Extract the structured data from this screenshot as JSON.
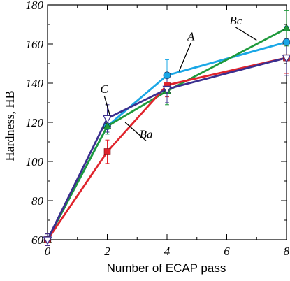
{
  "chart_data": {
    "type": "line",
    "xlabel": "Number of ECAP pass",
    "ylabel": "Hardness, HB",
    "xlim": [
      0,
      8
    ],
    "ylim": [
      60,
      180
    ],
    "x_ticks": [
      "0",
      "2",
      "4",
      "6",
      "8"
    ],
    "x_tick_values": [
      0,
      2,
      4,
      6,
      8
    ],
    "y_ticks": [
      "60",
      "80",
      "100",
      "120",
      "140",
      "160",
      "180"
    ],
    "y_tick_values": [
      60,
      80,
      100,
      120,
      140,
      160,
      180
    ],
    "grid": false,
    "legend": "none",
    "series": [
      {
        "name": "A",
        "color": "#1aa7e6",
        "marker": "circle",
        "x": [
          0,
          2,
          4,
          8
        ],
        "y": [
          60,
          118,
          144,
          161
        ],
        "err": [
          3,
          4,
          8,
          8
        ]
      },
      {
        "name": "Bc",
        "color": "#1f9a3c",
        "marker": "triangle-up",
        "x": [
          0,
          2,
          4,
          8
        ],
        "y": [
          60,
          118,
          136,
          168
        ],
        "err": [
          3,
          4,
          7,
          9
        ]
      },
      {
        "name": "Ba",
        "color": "#e0242c",
        "marker": "square",
        "x": [
          0,
          2,
          4,
          8
        ],
        "y": [
          60,
          105,
          139,
          153
        ],
        "err": [
          3,
          6,
          6,
          8
        ]
      },
      {
        "name": "C",
        "color": "#3b2f8f",
        "marker": "triangle-down",
        "x": [
          0,
          2,
          4,
          8
        ],
        "y": [
          60,
          122,
          137,
          153
        ],
        "err": [
          3,
          7,
          7,
          9
        ]
      }
    ],
    "annotations": [
      {
        "text": "A",
        "tx": 4.8,
        "ty": 162,
        "ax": 4.4,
        "ay": 146
      },
      {
        "text": "Bc",
        "tx": 6.3,
        "ty": 170,
        "ax": 7.0,
        "ay": 162
      },
      {
        "text": "Ba",
        "tx": 3.3,
        "ty": 112,
        "ax": 2.6,
        "ay": 120
      },
      {
        "text": "C",
        "tx": 1.9,
        "ty": 135,
        "ax": 2.1,
        "ay": 123
      }
    ]
  }
}
